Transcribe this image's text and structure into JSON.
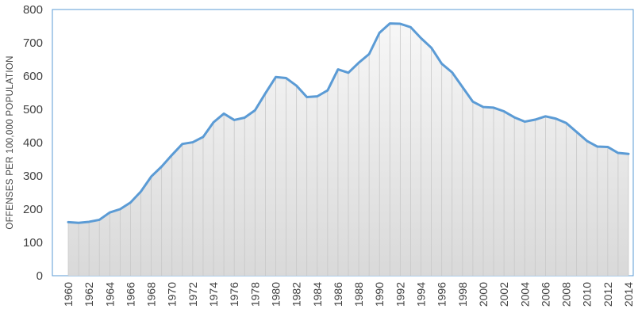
{
  "chart_data": {
    "type": "area",
    "title": "",
    "xlabel": "",
    "ylabel": "OFFENSES PER 100,000 POPULATION",
    "ylim": [
      0,
      800
    ],
    "yticks": [
      0,
      100,
      200,
      300,
      400,
      500,
      600,
      700,
      800
    ],
    "xticks": [
      1960,
      1962,
      1964,
      1966,
      1968,
      1970,
      1972,
      1974,
      1976,
      1978,
      1980,
      1982,
      1984,
      1986,
      1988,
      1990,
      1992,
      1994,
      1996,
      1998,
      2000,
      2002,
      2004,
      2006,
      2008,
      2010,
      2012,
      2014
    ],
    "grid": false,
    "legend": "none",
    "colors": {
      "line": "#5b9bd5",
      "fill_top": "#f7f7f7",
      "fill_bottom": "#d9d9d9",
      "drop_lines": "#c8c8c8"
    },
    "x": [
      1960,
      1961,
      1962,
      1963,
      1964,
      1965,
      1966,
      1967,
      1968,
      1969,
      1970,
      1971,
      1972,
      1973,
      1974,
      1975,
      1976,
      1977,
      1978,
      1979,
      1980,
      1981,
      1982,
      1983,
      1984,
      1985,
      1986,
      1987,
      1988,
      1989,
      1990,
      1991,
      1992,
      1993,
      1994,
      1995,
      1996,
      1997,
      1998,
      1999,
      2000,
      2001,
      2002,
      2003,
      2004,
      2005,
      2006,
      2007,
      2008,
      2009,
      2010,
      2011,
      2012,
      2013,
      2014
    ],
    "values": [
      161,
      159,
      162,
      168,
      190,
      200,
      220,
      253,
      298,
      328,
      363,
      396,
      401,
      417,
      461,
      487,
      468,
      475,
      497,
      548,
      597,
      594,
      571,
      537,
      539,
      557,
      620,
      610,
      640,
      666,
      730,
      758,
      757,
      747,
      714,
      685,
      637,
      611,
      567,
      523,
      507,
      505,
      494,
      476,
      463,
      469,
      479,
      472,
      459,
      432,
      405,
      388,
      387,
      369,
      366
    ]
  }
}
